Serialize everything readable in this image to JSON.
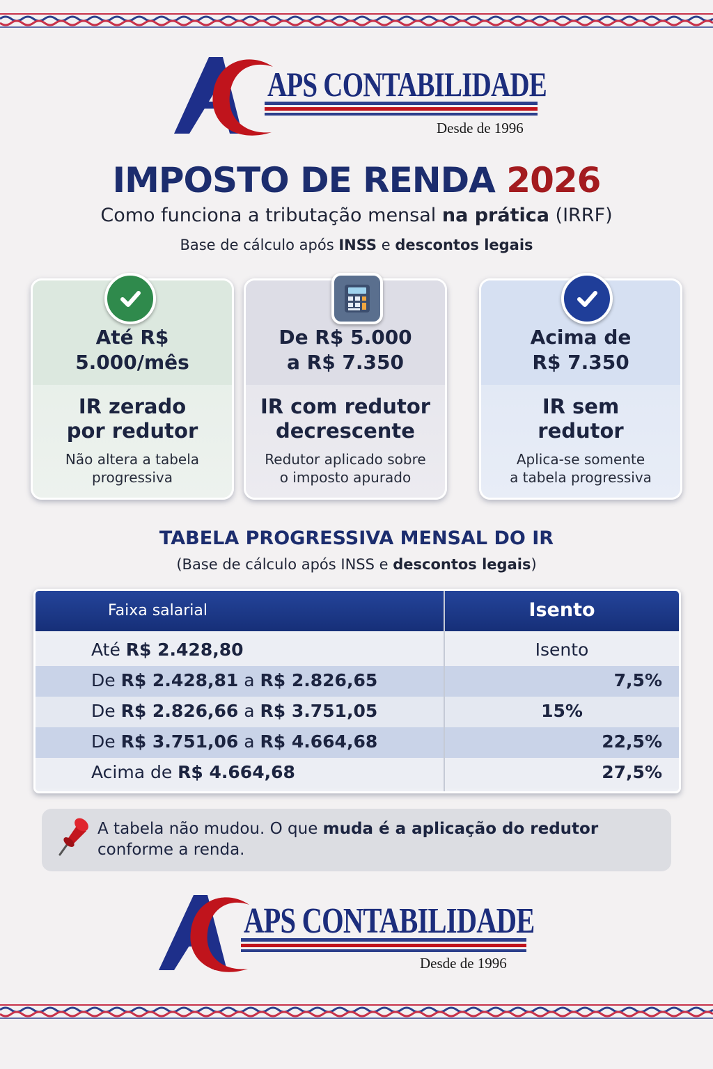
{
  "logo_top": {
    "name": "APS CONTABILIDADE",
    "since": "Desde de 1996"
  },
  "header": {
    "title_main": "IMPOSTO DE RENDA",
    "title_year": "2026",
    "subtitle_pre": "Como funciona a tributação mensal ",
    "subtitle_bold": "na prática",
    "subtitle_post": " (IRRF)",
    "base_pre": "Base de cálculo após ",
    "base_bold1": "INSS",
    "base_mid": " e ",
    "base_bold2": "descontos legais"
  },
  "cards": [
    {
      "range_line1": "Até R$",
      "range_line2": "5.000/mês",
      "title_line1": "IR zerado",
      "title_line2": "por redutor",
      "desc_line1": "Não altera a tabela",
      "desc_line2": "progressiva",
      "icon": "check-green-icon"
    },
    {
      "range_line1": "De R$ 5.000",
      "range_line2": "a R$ 7.350",
      "title_line1": "IR com redutor",
      "title_line2": "decrescente",
      "desc_line1": "Redutor aplicado sobre",
      "desc_line2": "o imposto apurado",
      "icon": "calculator-icon"
    },
    {
      "range_line1": "Acima de",
      "range_line2": "R$ 7.350",
      "title_line1": "IR sem",
      "title_line2": "redutor",
      "desc_line1": "Aplica-se somente",
      "desc_line2": "a tabela progressiva",
      "icon": "check-blue-icon"
    }
  ],
  "table": {
    "title": "TABELA PROGRESSIVA MENSAL DO IR",
    "sub_pre": "(Base de cálculo após INSS e ",
    "sub_bold": "descontos legais",
    "sub_post": ")",
    "header_left": "Faixa salarial",
    "header_right": "Isento",
    "rows": [
      {
        "p1": "Até ",
        "b1": "R$ 2.428,80",
        "p2": "",
        "b2": "",
        "rate": "Isento"
      },
      {
        "p1": "De ",
        "b1": "R$ 2.428,81",
        "p2": " a ",
        "b2": "R$ 2.826,65",
        "rate": "7,5%"
      },
      {
        "p1": "De ",
        "b1": "R$ 2.826,66",
        "p2": " a ",
        "b2": "R$ 3.751,05",
        "rate": "15%"
      },
      {
        "p1": "De ",
        "b1": "R$ 3.751,06",
        "p2": " a ",
        "b2": "R$ 4.664,68",
        "rate": "22,5%"
      },
      {
        "p1": "Acima de ",
        "b1": "R$ 4.664,68",
        "p2": "",
        "b2": "",
        "rate": "27,5%"
      }
    ]
  },
  "note": {
    "icon": "pushpin-icon",
    "pre": "A tabela não mudou. O que ",
    "bold": "muda é a aplicação do redutor",
    "post": " conforme a renda."
  },
  "logo_bottom": {
    "name": "APS CONTABILIDADE",
    "since": "Desde de 1996"
  },
  "colors": {
    "navy": "#1c2d7c",
    "red": "#b3151b",
    "green": "#2f8a4c",
    "table_header": "#1f3b8c"
  }
}
